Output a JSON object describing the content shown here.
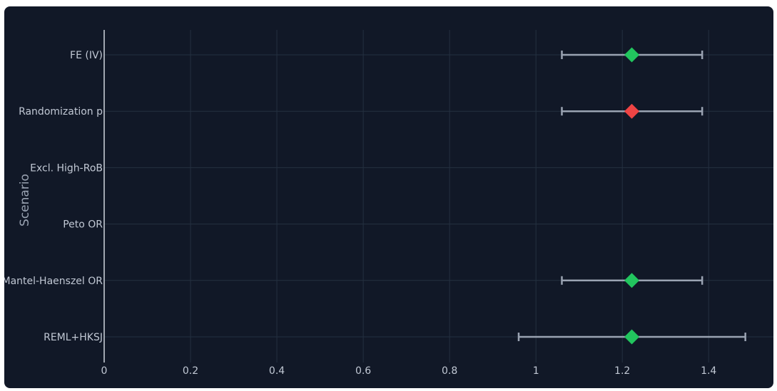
{
  "chart_data": {
    "type": "scatter",
    "title": "",
    "xlabel": "",
    "ylabel": "Scenario",
    "xlim": [
      0,
      1.55
    ],
    "x_ticks": [
      0,
      0.2,
      0.4,
      0.6,
      0.8,
      1,
      1.2,
      1.4
    ],
    "x_tick_labels": [
      "0",
      "0.2",
      "0.4",
      "0.6",
      "0.8",
      "1",
      "1.2",
      "1.4"
    ],
    "categories": [
      "FE (IV)",
      "Randomization p",
      "Excl. High-RoB",
      "Peto OR",
      "Mantel-Haenszel OR",
      "REML+HKSJ"
    ],
    "points": [
      {
        "category": "FE (IV)",
        "estimate": 1.222,
        "ci_low": 1.06,
        "ci_high": 1.385,
        "color": "#22c55e"
      },
      {
        "category": "Randomization p",
        "estimate": 1.222,
        "ci_low": 1.06,
        "ci_high": 1.385,
        "color": "#ef4444"
      },
      {
        "category": "Excl. High-RoB",
        "estimate": null,
        "ci_low": null,
        "ci_high": null,
        "color": "#22c55e"
      },
      {
        "category": "Peto OR",
        "estimate": null,
        "ci_low": null,
        "ci_high": null,
        "color": "#22c55e"
      },
      {
        "category": "Mantel-Haenszel OR",
        "estimate": 1.222,
        "ci_low": 1.06,
        "ci_high": 1.385,
        "color": "#22c55e"
      },
      {
        "category": "REML+HKSJ",
        "estimate": 1.222,
        "ci_low": 0.96,
        "ci_high": 1.485,
        "color": "#22c55e"
      }
    ],
    "grid": true,
    "legend": "none",
    "colors": {
      "background": "#111827",
      "grid": "#243040",
      "axis": "#d0d5dd",
      "errorbar": "#9aa3b2"
    }
  }
}
